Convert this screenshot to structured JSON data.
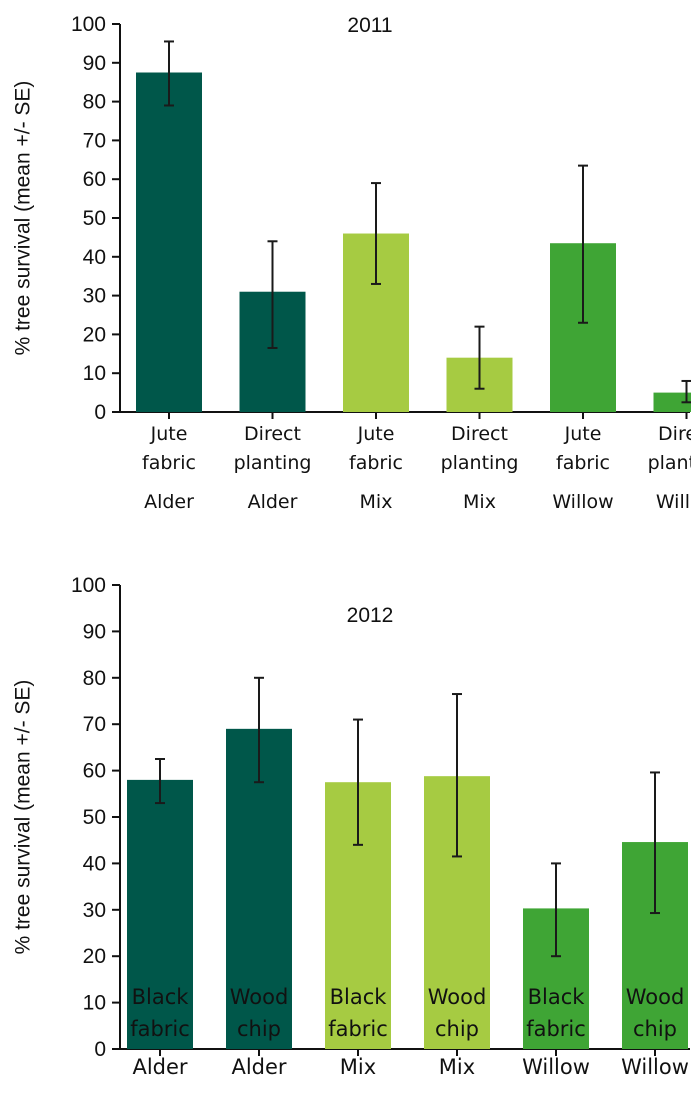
{
  "chart_data": [
    {
      "type": "bar",
      "title": "2011",
      "ylabel": "% tree survival (mean +/- SE)",
      "ylim": [
        0,
        100
      ],
      "yticks": [
        0,
        10,
        20,
        30,
        40,
        50,
        60,
        70,
        80,
        90,
        100
      ],
      "grid": false,
      "categories": [
        {
          "line1": "Jute",
          "line2": "fabric",
          "group": "Alder"
        },
        {
          "line1": "Direct",
          "line2": "planting",
          "group": "Alder"
        },
        {
          "line1": "Jute",
          "line2": "fabric",
          "group": "Mix"
        },
        {
          "line1": "Direct",
          "line2": "planting",
          "group": "Mix"
        },
        {
          "line1": "Jute",
          "line2": "fabric",
          "group": "Willow"
        },
        {
          "line1": "Direct",
          "line2": "planting",
          "group": "Willow"
        }
      ],
      "values": [
        87.5,
        31,
        46,
        14,
        43.5,
        5
      ],
      "error_low": [
        79,
        16.5,
        33,
        6,
        23,
        2.5
      ],
      "error_high": [
        95.5,
        44,
        59,
        22,
        63.5,
        8
      ],
      "colors": [
        "#00574a",
        "#00574a",
        "#a6cb42",
        "#a6cb42",
        "#3fa535",
        "#3fa535"
      ]
    },
    {
      "type": "bar",
      "title": "2012",
      "ylabel": "% tree survival (mean +/- SE)",
      "ylim": [
        0,
        100
      ],
      "yticks": [
        0,
        10,
        20,
        30,
        40,
        50,
        60,
        70,
        80,
        90,
        100
      ],
      "grid": false,
      "categories": [
        {
          "line1": "Black",
          "line2": "fabric",
          "group": "Alder"
        },
        {
          "line1": "Wood",
          "line2": "chip",
          "group": "Alder"
        },
        {
          "line1": "Black",
          "line2": "fabric",
          "group": "Mix"
        },
        {
          "line1": "Wood",
          "line2": "chip",
          "group": "Mix"
        },
        {
          "line1": "Black",
          "line2": "fabric",
          "group": "Willow"
        },
        {
          "line1": "Wood",
          "line2": "chip",
          "group": "Willow"
        }
      ],
      "values": [
        58,
        69,
        57.5,
        58.8,
        30.3,
        44.6
      ],
      "error_low": [
        53,
        57.5,
        44,
        41.5,
        20,
        29.3
      ],
      "error_high": [
        62.5,
        80,
        71,
        76.5,
        40,
        59.6
      ],
      "colors": [
        "#00574a",
        "#00574a",
        "#a6cb42",
        "#a6cb42",
        "#3fa535",
        "#3fa535"
      ]
    }
  ]
}
